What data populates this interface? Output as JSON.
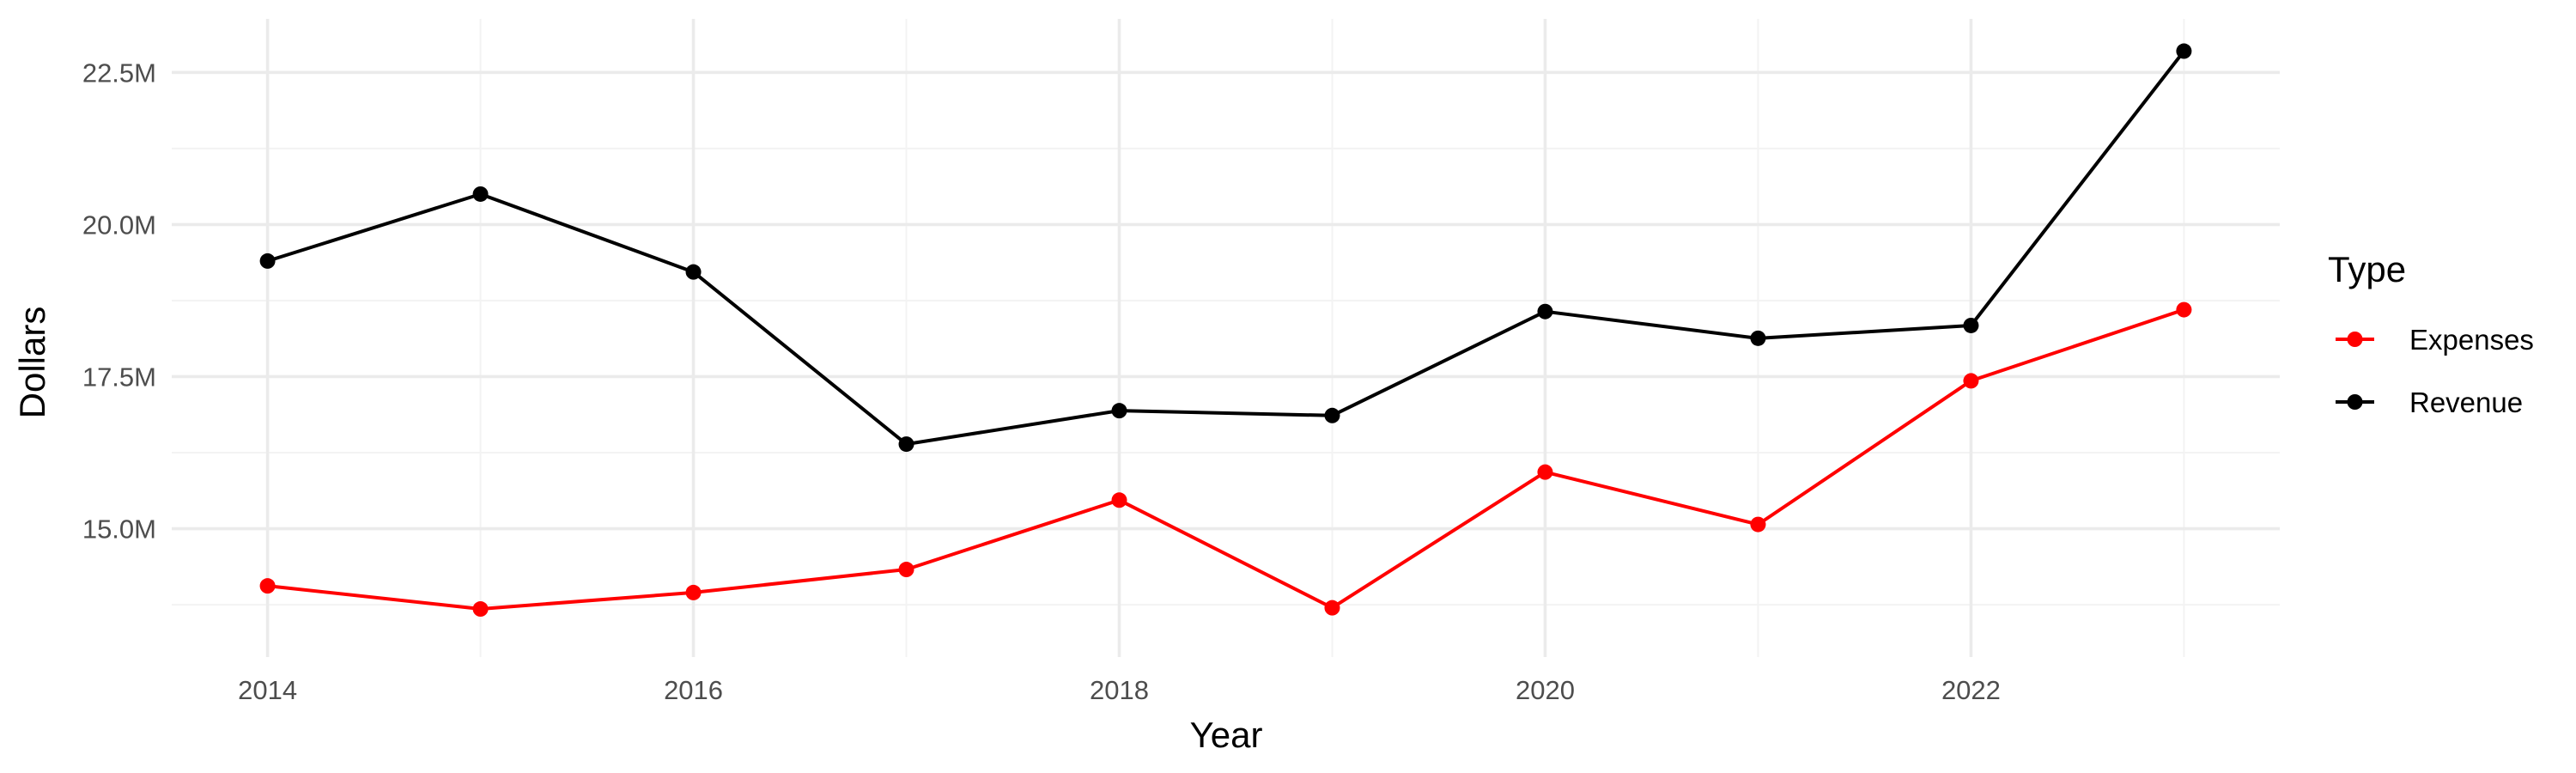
{
  "chart_data": {
    "type": "line",
    "title": "",
    "xlabel": "Year",
    "ylabel": "Dollars",
    "x": [
      2014,
      2015,
      2016,
      2017,
      2018,
      2019,
      2020,
      2021,
      2022,
      2023
    ],
    "xlim": [
      2013.55,
      2023.45
    ],
    "ylim": [
      12.89,
      23.38
    ],
    "x_ticks": [
      2014,
      2016,
      2018,
      2020,
      2022
    ],
    "x_tick_labels": [
      "2014",
      "2016",
      "2018",
      "2020",
      "2022"
    ],
    "y_ticks": [
      15.0,
      17.5,
      20.0,
      22.5
    ],
    "y_tick_labels": [
      "15.0M",
      "17.5M",
      "20.0M",
      "22.5M"
    ],
    "y_unit": "millions of dollars",
    "grid": true,
    "legend": {
      "title": "Type",
      "placement": "right"
    },
    "series": [
      {
        "name": "Expenses",
        "color": "#ff0000",
        "values": [
          14.06,
          13.68,
          13.95,
          14.33,
          15.47,
          13.7,
          15.93,
          15.07,
          17.43,
          18.6
        ]
      },
      {
        "name": "Revenue",
        "color": "#000000",
        "values": [
          19.4,
          20.5,
          19.22,
          16.39,
          16.94,
          16.86,
          18.57,
          18.13,
          18.34,
          22.85
        ]
      }
    ]
  }
}
